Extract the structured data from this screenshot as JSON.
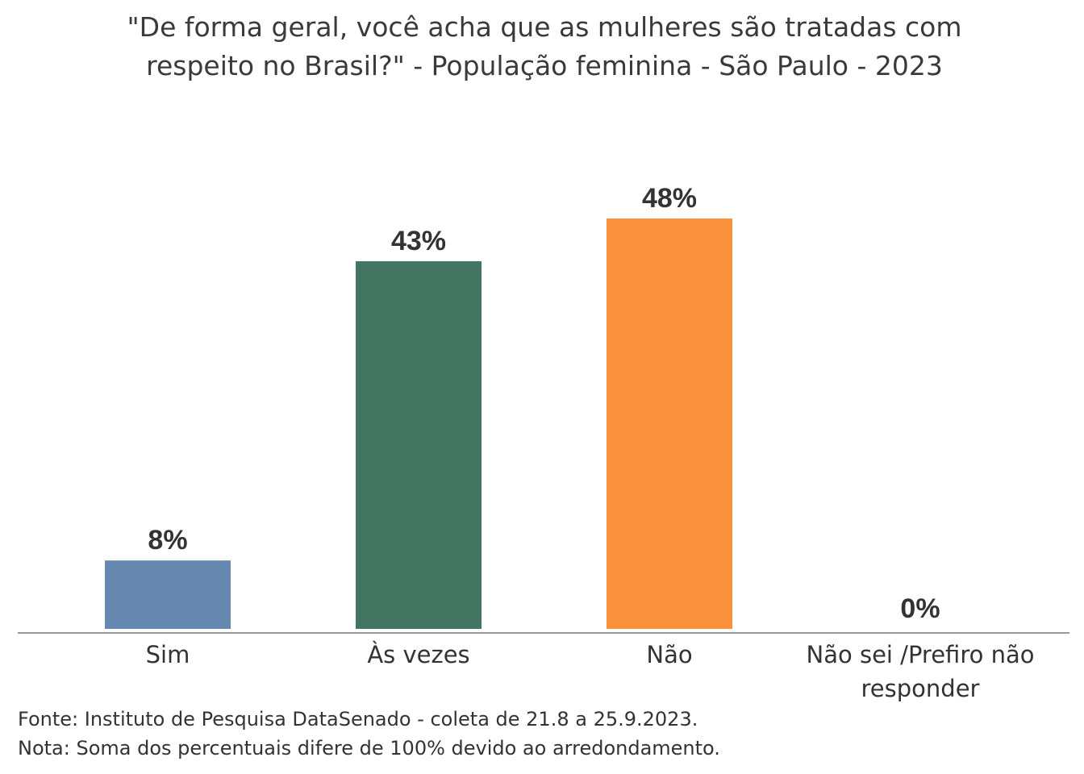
{
  "chart_data": {
    "type": "bar",
    "title_lines": [
      "\"De forma geral, você acha que as mulheres são tratadas com",
      "respeito no Brasil?\" - População feminina - São Paulo - 2023"
    ],
    "categories": [
      [
        "Sim"
      ],
      [
        "Às vezes"
      ],
      [
        "Não"
      ],
      [
        "Não sei /Prefiro não",
        "responder"
      ]
    ],
    "values": [
      8,
      43,
      48,
      0
    ],
    "value_labels": [
      "8%",
      "43%",
      "48%",
      "0%"
    ],
    "colors": [
      "#6688b0",
      "#447563",
      "#fa913d",
      "#9a9a9a"
    ],
    "ylim": [
      0,
      48
    ],
    "grid": false,
    "legend": "none"
  },
  "footer": {
    "source": "Fonte: Instituto de Pesquisa DataSenado - coleta de 21.8 a 25.9.2023.",
    "note": "Nota: Soma dos percentuais difere de 100% devido ao arredondamento."
  }
}
